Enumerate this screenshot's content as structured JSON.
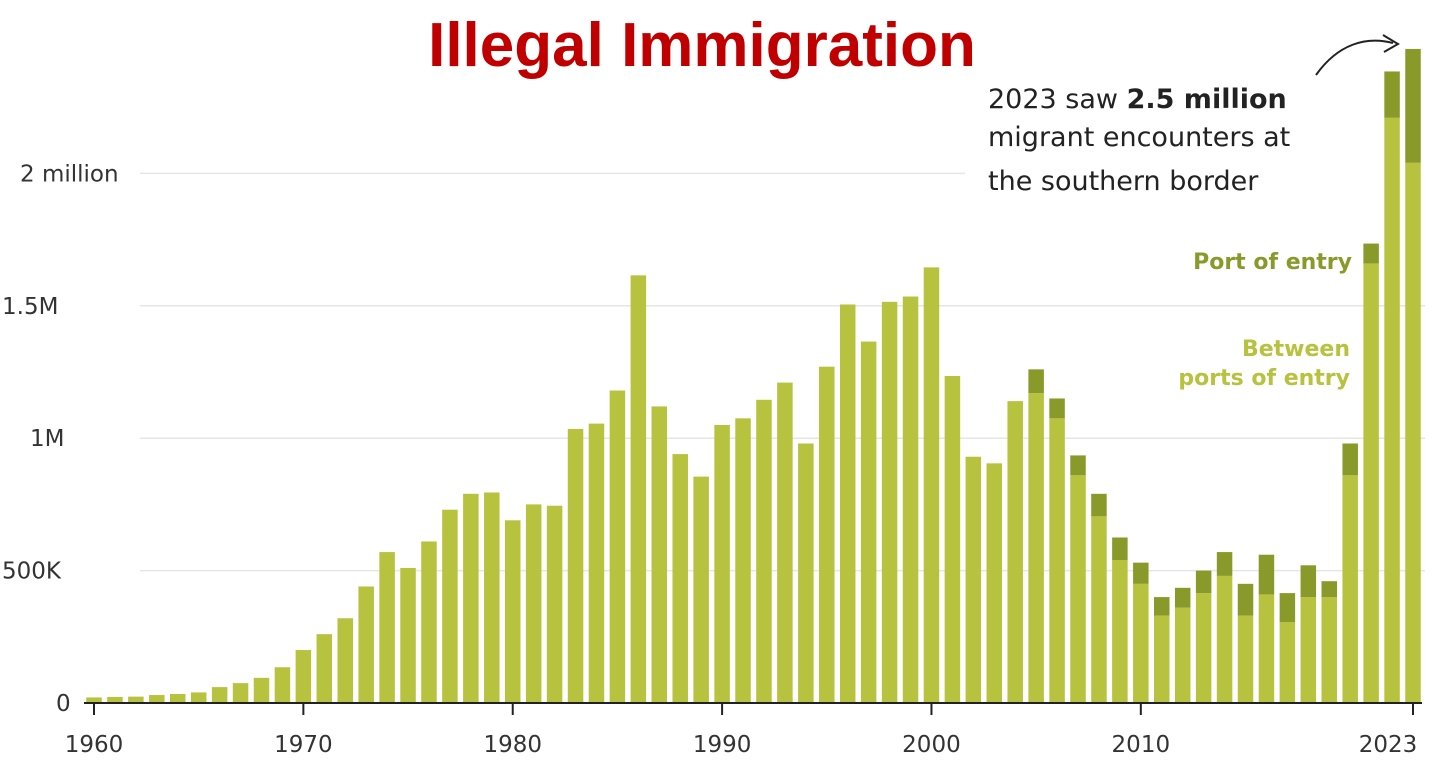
{
  "chart_data": {
    "type": "bar",
    "stacked": true,
    "title": "Illegal Immigration",
    "subtitle": "",
    "xlabel": "",
    "ylabel": "",
    "ylim": [
      0,
      2500000
    ],
    "grid": true,
    "y_ticks": [
      {
        "value": 0,
        "label": "0"
      },
      {
        "value": 500000,
        "label": "500K"
      },
      {
        "value": 1000000,
        "label": "1M"
      },
      {
        "value": 1500000,
        "label": "1.5M"
      },
      {
        "value": 2000000,
        "label": "2 million"
      }
    ],
    "x_ticks": [
      {
        "value": 1960,
        "label": "1960"
      },
      {
        "value": 1970,
        "label": "1970"
      },
      {
        "value": 1980,
        "label": "1980"
      },
      {
        "value": 1990,
        "label": "1990"
      },
      {
        "value": 2000,
        "label": "2000"
      },
      {
        "value": 2010,
        "label": "2010"
      },
      {
        "value": 2023,
        "label": "2023"
      }
    ],
    "categories": [
      1960,
      1961,
      1962,
      1963,
      1964,
      1965,
      1966,
      1967,
      1968,
      1969,
      1970,
      1971,
      1972,
      1973,
      1974,
      1975,
      1976,
      1977,
      1978,
      1979,
      1980,
      1981,
      1982,
      1983,
      1984,
      1985,
      1986,
      1987,
      1988,
      1989,
      1990,
      1991,
      1992,
      1993,
      1994,
      1995,
      1996,
      1997,
      1998,
      1999,
      2000,
      2001,
      2002,
      2003,
      2004,
      2005,
      2006,
      2007,
      2008,
      2009,
      2010,
      2011,
      2012,
      2013,
      2014,
      2015,
      2016,
      2017,
      2018,
      2019,
      2020,
      2021,
      2022,
      2023
    ],
    "series": [
      {
        "name": "Between ports of entry",
        "color": "#b7c23e",
        "values": [
          21000,
          23000,
          24000,
          30000,
          34000,
          40000,
          60000,
          75000,
          95000,
          135000,
          200000,
          260000,
          320000,
          440000,
          570000,
          510000,
          610000,
          730000,
          790000,
          795000,
          690000,
          750000,
          745000,
          1035000,
          1055000,
          1180000,
          1615000,
          1120000,
          940000,
          855000,
          1050000,
          1075000,
          1145000,
          1210000,
          980000,
          1270000,
          1505000,
          1365000,
          1515000,
          1535000,
          1645000,
          1235000,
          930000,
          905000,
          1140000,
          1170000,
          1075000,
          860000,
          705000,
          540000,
          450000,
          330000,
          360000,
          415000,
          480000,
          330000,
          410000,
          305000,
          400000,
          400000,
          860000,
          1660000,
          2210000,
          2040000
        ]
      },
      {
        "name": "Port of entry",
        "color": "#8a9a2a",
        "values": [
          0,
          0,
          0,
          0,
          0,
          0,
          0,
          0,
          0,
          0,
          0,
          0,
          0,
          0,
          0,
          0,
          0,
          0,
          0,
          0,
          0,
          0,
          0,
          0,
          0,
          0,
          0,
          0,
          0,
          0,
          0,
          0,
          0,
          0,
          0,
          0,
          0,
          0,
          0,
          0,
          0,
          0,
          0,
          0,
          0,
          90000,
          75000,
          75000,
          85000,
          85000,
          80000,
          70000,
          75000,
          85000,
          90000,
          120000,
          150000,
          110000,
          120000,
          60000,
          120000,
          75000,
          175000,
          430000
        ]
      }
    ],
    "annotation": {
      "line1_prefix": "2023 saw ",
      "line1_bold": "2.5 million",
      "line2": "migrant encounters at",
      "line3": "the southern border"
    },
    "legend": {
      "port": "Port of entry",
      "between_line1": "Between",
      "between_line2": "ports of entry"
    },
    "colors": {
      "title": "#c00000",
      "grid": "#e6e6e6",
      "axis": "#222222",
      "between": "#b7c23e",
      "port": "#8a9a2a"
    }
  }
}
